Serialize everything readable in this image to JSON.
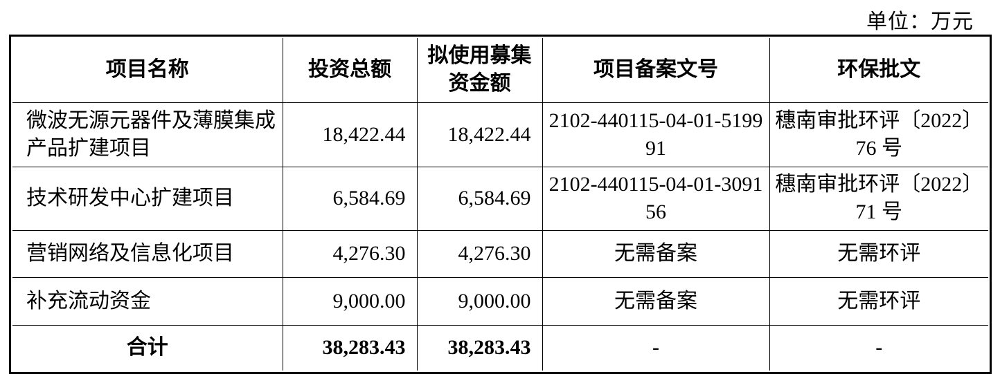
{
  "unit_label": "单位：万元",
  "table": {
    "headers": [
      "项目名称",
      "投资总额",
      "拟使用募集资金额",
      "项目备案文号",
      "环保批文"
    ],
    "rows": [
      {
        "name": "微波无源元器件及薄膜集成产品扩建项目",
        "total": "18,422.44",
        "raised": "18,422.44",
        "filing": "2102-440115-04-01-519991",
        "env": "穗南审批环评〔2022〕76 号"
      },
      {
        "name": "技术研发中心扩建项目",
        "total": "6,584.69",
        "raised": "6,584.69",
        "filing": "2102-440115-04-01-309156",
        "env": "穗南审批环评〔2022〕71 号"
      },
      {
        "name": "营销网络及信息化项目",
        "total": "4,276.30",
        "raised": "4,276.30",
        "filing": "无需备案",
        "env": "无需环评"
      },
      {
        "name": "补充流动资金",
        "total": "9,000.00",
        "raised": "9,000.00",
        "filing": "无需备案",
        "env": "无需环评"
      }
    ],
    "total_row": {
      "name": "合计",
      "total": "38,283.43",
      "raised": "38,283.43",
      "filing": "-",
      "env": "-"
    }
  }
}
